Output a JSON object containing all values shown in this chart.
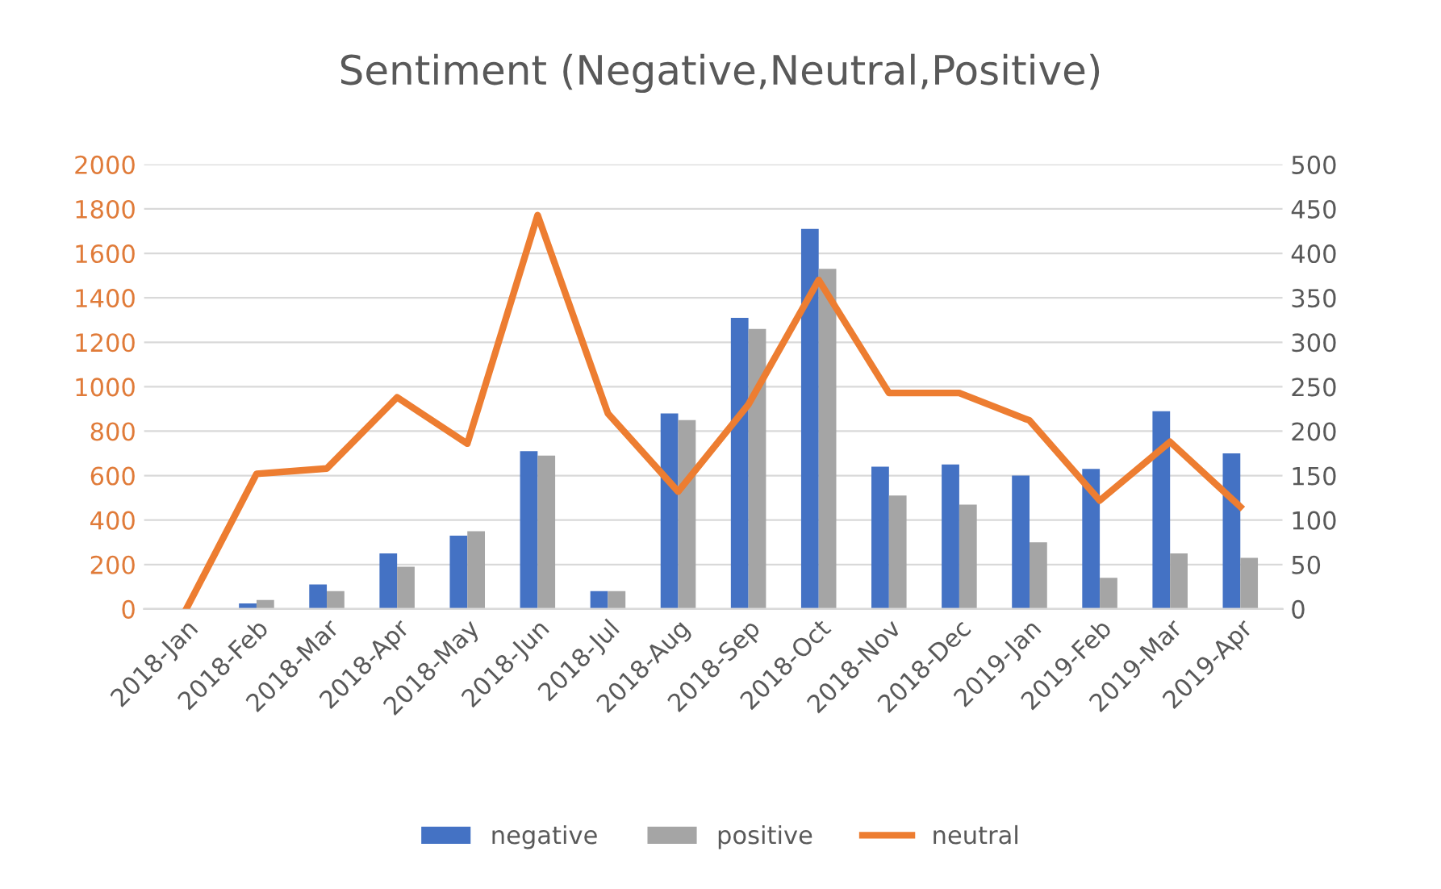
{
  "chart_data": {
    "type": "bar",
    "title": "Sentiment (Negative,Neutral,Positive)",
    "categories": [
      "2018-Jan",
      "2018-Feb",
      "2018-Mar",
      "2018-Apr",
      "2018-May",
      "2018-Jun",
      "2018-Jul",
      "2018-Aug",
      "2018-Sep",
      "2018-Oct",
      "2018-Nov",
      "2018-Dec",
      "2019-Jan",
      "2019-Feb",
      "2019-Mar",
      "2019-Apr"
    ],
    "series": [
      {
        "name": "negative",
        "color": "#4472c4",
        "values": [
          null,
          25,
          110,
          250,
          330,
          710,
          80,
          880,
          1310,
          1710,
          640,
          650,
          600,
          630,
          890,
          700
        ]
      },
      {
        "name": "positive",
        "color": "#a5a5a5",
        "values": [
          null,
          40,
          80,
          190,
          350,
          690,
          80,
          850,
          1260,
          1530,
          510,
          470,
          300,
          140,
          250,
          230
        ]
      },
      {
        "name": "neutral",
        "type": "line",
        "axis": "y2",
        "color": "#ed7d31",
        "values": [
          0,
          152,
          158,
          238,
          186,
          443,
          220,
          132,
          230,
          370,
          243,
          243,
          212,
          122,
          188,
          115
        ]
      }
    ],
    "ylim": [
      0,
      2000
    ],
    "yticks": [
      0,
      200,
      400,
      600,
      800,
      1000,
      1200,
      1400,
      1600,
      1800,
      2000
    ],
    "y2lim": [
      0,
      500
    ],
    "y2ticks": [
      0,
      50,
      100,
      150,
      200,
      250,
      300,
      350,
      400,
      450,
      500
    ],
    "grid": "y",
    "legend": "bottom",
    "marker": "none",
    "line_style": "solid"
  }
}
